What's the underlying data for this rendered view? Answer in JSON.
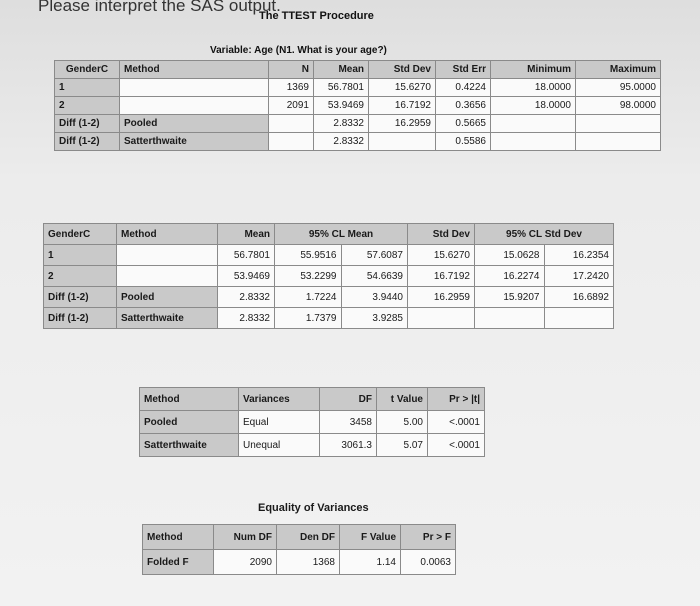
{
  "question": "Please interpret the SAS output.",
  "procedure_title": "The TTEST Procedure",
  "variable_label": "Variable: Age (N1. What is your age?)",
  "stats_table": {
    "headers": [
      "GenderC",
      "Method",
      "N",
      "Mean",
      "Std Dev",
      "Std Err",
      "Minimum",
      "Maximum"
    ],
    "rows": [
      [
        "1",
        "",
        "1369",
        "56.7801",
        "15.6270",
        "0.4224",
        "18.0000",
        "95.0000"
      ],
      [
        "2",
        "",
        "2091",
        "53.9469",
        "16.7192",
        "0.3656",
        "18.0000",
        "98.0000"
      ],
      [
        "Diff (1-2)",
        "Pooled",
        "",
        "2.8332",
        "16.2959",
        "0.5665",
        "",
        ""
      ],
      [
        "Diff (1-2)",
        "Satterthwaite",
        "",
        "2.8332",
        "",
        "0.5586",
        "",
        ""
      ]
    ]
  },
  "cl_table": {
    "headers": [
      "GenderC",
      "Method",
      "Mean",
      "95% CL Mean",
      "",
      "Std Dev",
      "95% CL Std Dev",
      ""
    ],
    "rows": [
      [
        "1",
        "",
        "56.7801",
        "55.9516",
        "57.6087",
        "15.6270",
        "15.0628",
        "16.2354"
      ],
      [
        "2",
        "",
        "53.9469",
        "53.2299",
        "54.6639",
        "16.7192",
        "16.2274",
        "17.2420"
      ],
      [
        "Diff (1-2)",
        "Pooled",
        "2.8332",
        "1.7224",
        "3.9440",
        "16.2959",
        "15.9207",
        "16.6892"
      ],
      [
        "Diff (1-2)",
        "Satterthwaite",
        "2.8332",
        "1.7379",
        "3.9285",
        "",
        "",
        ""
      ]
    ]
  },
  "ttest_table": {
    "headers": [
      "Method",
      "Variances",
      "DF",
      "t Value",
      "Pr > |t|"
    ],
    "rows": [
      [
        "Pooled",
        "Equal",
        "3458",
        "5.00",
        "<.0001"
      ],
      [
        "Satterthwaite",
        "Unequal",
        "3061.3",
        "5.07",
        "<.0001"
      ]
    ]
  },
  "equality_table": {
    "title": "Equality of Variances",
    "headers": [
      "Method",
      "Num DF",
      "Den DF",
      "F Value",
      "Pr > F"
    ],
    "rows": [
      [
        "Folded F",
        "2090",
        "1368",
        "1.14",
        "0.0063"
      ]
    ]
  }
}
